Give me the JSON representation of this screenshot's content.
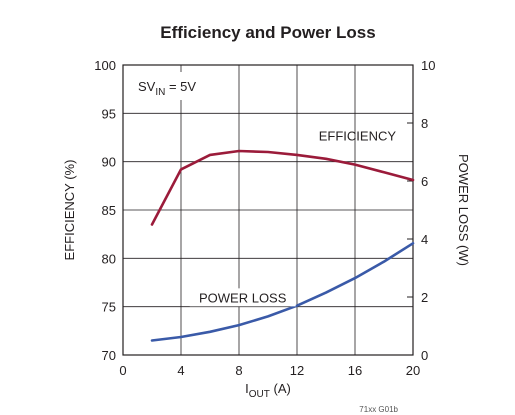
{
  "chart_data": {
    "type": "line",
    "title": "Efficiency and Power Loss",
    "xlabel": {
      "main": "I",
      "sub": "OUT",
      "unit": " (A)"
    },
    "ylabel_left": "EFFICIENCY (%)",
    "ylabel_right": "POWER LOSS (W)",
    "xlim": [
      0,
      20
    ],
    "ylim_left": [
      70,
      100
    ],
    "ylim_right": [
      0,
      10
    ],
    "xticks": [
      "0",
      "4",
      "8",
      "12",
      "16",
      "20"
    ],
    "yticks_left": [
      "70",
      "75",
      "80",
      "85",
      "90",
      "95",
      "100"
    ],
    "yticks_right": [
      "0",
      "2",
      "4",
      "6",
      "8",
      "10"
    ],
    "grid": true,
    "annotation": {
      "main": "SV",
      "sub": "IN",
      "rest": " = 5V"
    },
    "footnote": "71xx G01b",
    "series": [
      {
        "name": "EFFICIENCY",
        "axis": "left",
        "color": "#9b1b3a",
        "x": [
          2,
          4,
          6,
          8,
          10,
          12,
          14,
          16,
          18,
          20
        ],
        "y": [
          83.5,
          89.2,
          90.7,
          91.1,
          91.0,
          90.7,
          90.3,
          89.7,
          88.9,
          88.1
        ]
      },
      {
        "name": "POWER LOSS",
        "axis": "right",
        "color": "#3a5aa8",
        "x": [
          2,
          4,
          6,
          8,
          10,
          12,
          14,
          16,
          18,
          20
        ],
        "y": [
          0.5,
          0.62,
          0.8,
          1.03,
          1.33,
          1.7,
          2.15,
          2.65,
          3.22,
          3.85
        ]
      }
    ]
  }
}
